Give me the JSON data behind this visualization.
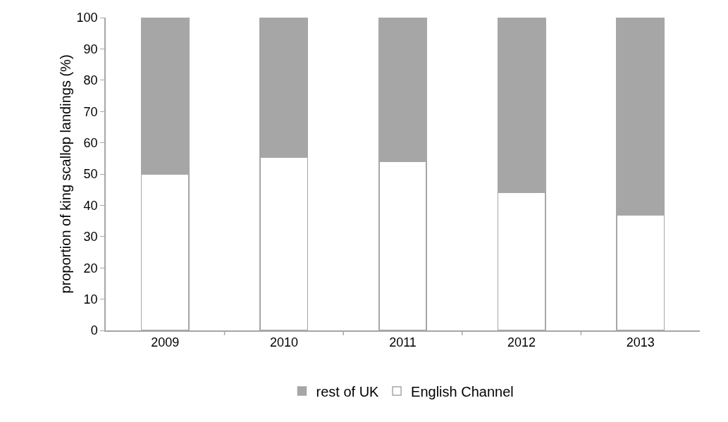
{
  "chart_data": {
    "type": "bar",
    "stacked": true,
    "ylabel": "proportion of king scallop landings (%)",
    "categories": [
      "2009",
      "2010",
      "2011",
      "2012",
      "2013"
    ],
    "series": [
      {
        "name": "English Channel",
        "color": "#ffffff",
        "values": [
          50,
          55.4,
          53.9,
          44.1,
          36.8
        ]
      },
      {
        "name": "rest of UK",
        "color": "#a6a6a6",
        "values": [
          50,
          44.6,
          46.1,
          55.9,
          63.2
        ]
      }
    ],
    "ylim": [
      0,
      100
    ],
    "yticks": [
      0,
      10,
      20,
      30,
      40,
      50,
      60,
      70,
      80,
      90,
      100
    ],
    "grid": false,
    "legend": "bottom"
  }
}
